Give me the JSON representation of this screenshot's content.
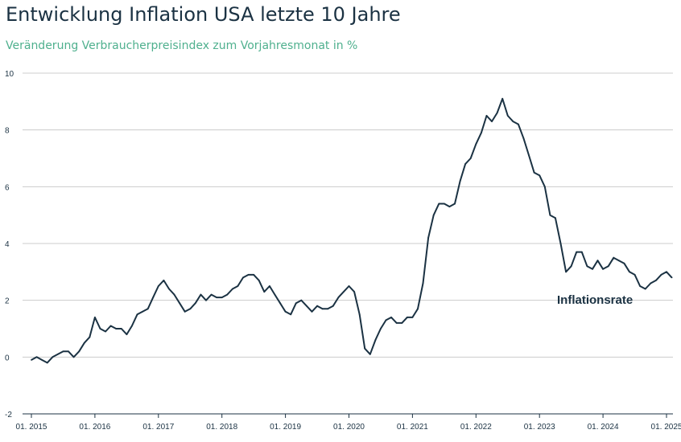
{
  "chart_data": {
    "type": "line",
    "title": "Entwicklung Inflation USA letzte 10 Jahre",
    "subtitle": "Veränderung Verbraucherpreisindex zum Vorjahresmonat in %",
    "xlabel": "",
    "ylabel": "",
    "ylim": [
      -2,
      10
    ],
    "yticks": [
      -2,
      0,
      2,
      4,
      6,
      8,
      10
    ],
    "x_tick_labels": [
      "01. 2015",
      "01. 2016",
      "01. 2017",
      "01. 2018",
      "01. 2019",
      "01. 2020",
      "01. 2021",
      "01. 2022",
      "01. 2023",
      "01. 2024",
      "01. 2025"
    ],
    "grid": "horizontal",
    "line_color": "#1b3243",
    "grid_color": "#cccccc",
    "series": [
      {
        "name": "Inflationsrate",
        "x_start": "2015-01",
        "frequency": "monthly",
        "values": [
          -0.1,
          0.0,
          -0.1,
          -0.2,
          0.0,
          0.1,
          0.2,
          0.2,
          0.0,
          0.2,
          0.5,
          0.7,
          1.4,
          1.0,
          0.9,
          1.1,
          1.0,
          1.0,
          0.8,
          1.1,
          1.5,
          1.6,
          1.7,
          2.1,
          2.5,
          2.7,
          2.4,
          2.2,
          1.9,
          1.6,
          1.7,
          1.9,
          2.2,
          2.0,
          2.2,
          2.1,
          2.1,
          2.2,
          2.4,
          2.5,
          2.8,
          2.9,
          2.9,
          2.7,
          2.3,
          2.5,
          2.2,
          1.9,
          1.6,
          1.5,
          1.9,
          2.0,
          1.8,
          1.6,
          1.8,
          1.7,
          1.7,
          1.8,
          2.1,
          2.3,
          2.5,
          2.3,
          1.5,
          0.3,
          0.1,
          0.6,
          1.0,
          1.3,
          1.4,
          1.2,
          1.2,
          1.4,
          1.4,
          1.7,
          2.6,
          4.2,
          5.0,
          5.4,
          5.4,
          5.3,
          5.4,
          6.2,
          6.8,
          7.0,
          7.5,
          7.9,
          8.5,
          8.3,
          8.6,
          9.1,
          8.5,
          8.3,
          8.2,
          7.7,
          7.1,
          6.5,
          6.4,
          6.0,
          5.0,
          4.9,
          4.0,
          3.0,
          3.2,
          3.7,
          3.7,
          3.2,
          3.1,
          3.4,
          3.1,
          3.2,
          3.5,
          3.4,
          3.3,
          3.0,
          2.9,
          2.5,
          2.4,
          2.6,
          2.7,
          2.9,
          3.0,
          2.8
        ]
      }
    ]
  }
}
